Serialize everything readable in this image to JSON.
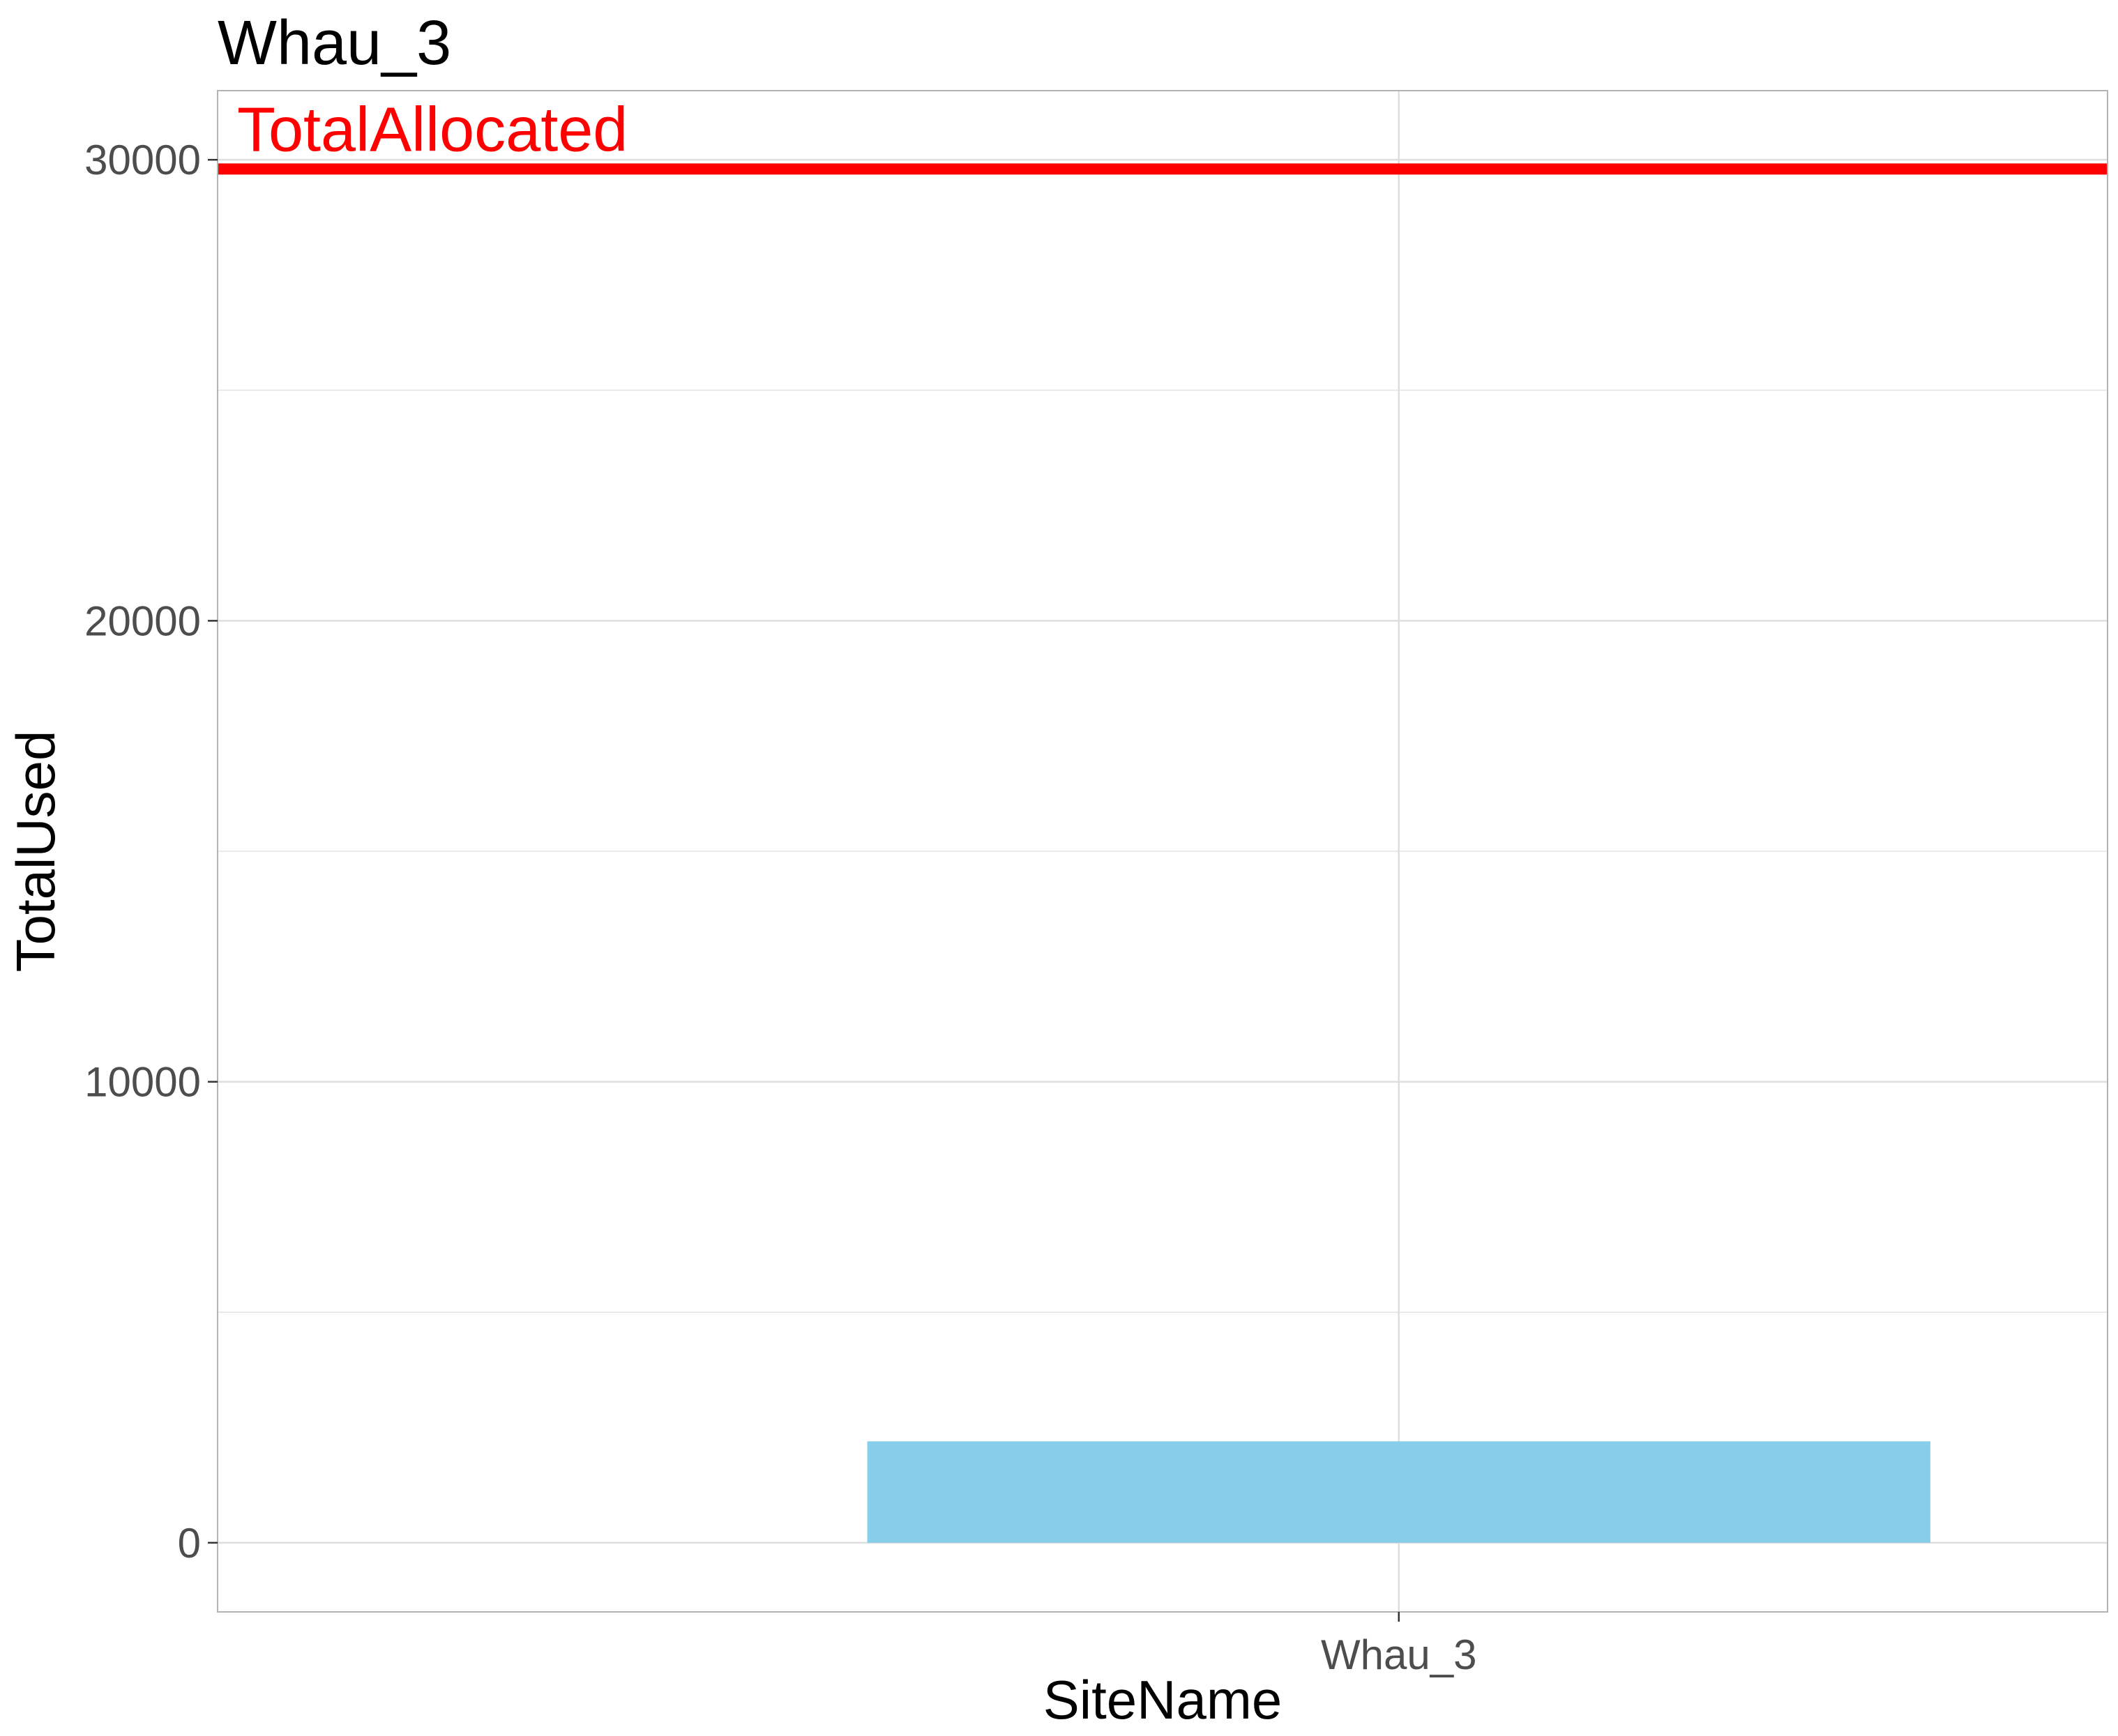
{
  "chart_data": {
    "type": "bar",
    "title": "Whau_3",
    "xlabel": "SiteName",
    "ylabel": "TotalUsed",
    "categories": [
      "Whau_3"
    ],
    "values": [
      2200
    ],
    "ylim": [
      -1500,
      31500
    ],
    "y_ticks": [
      {
        "value": 0,
        "label": "0"
      },
      {
        "value": 10000,
        "label": "10000"
      },
      {
        "value": 20000,
        "label": "20000"
      },
      {
        "value": 30000,
        "label": "30000"
      }
    ],
    "y_minor_ticks": [
      5000,
      15000,
      25000
    ],
    "grid": true,
    "bar_color": "#87CEEB",
    "reference_line": {
      "value": 29800,
      "label": "TotalAllocated",
      "color": "#FF0000"
    },
    "panel_border_color": "#b3b3b3",
    "grid_color": "#dedede"
  }
}
